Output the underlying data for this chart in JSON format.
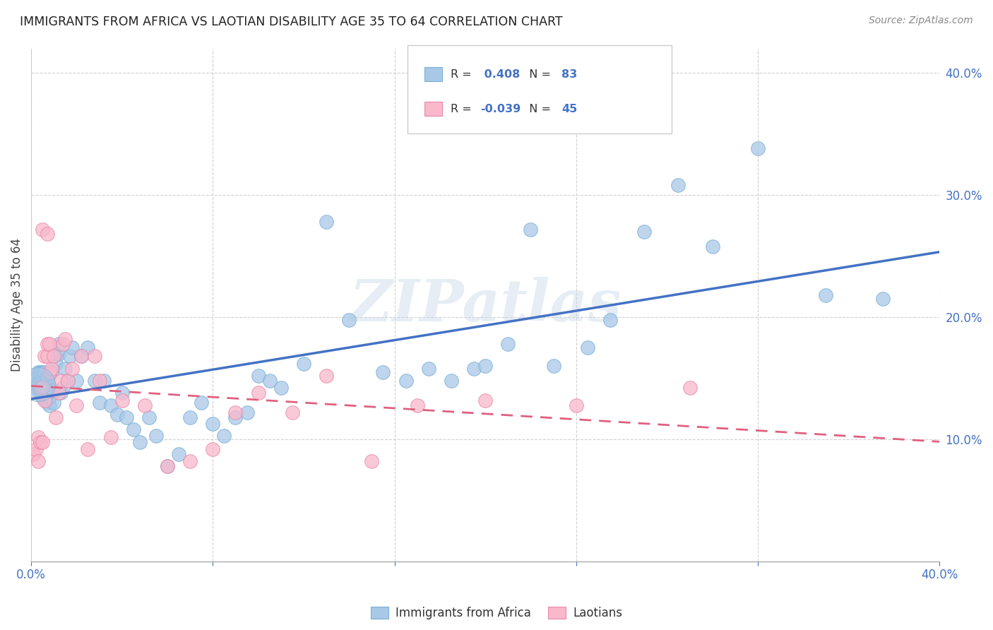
{
  "title": "IMMIGRANTS FROM AFRICA VS LAOTIAN DISABILITY AGE 35 TO 64 CORRELATION CHART",
  "source": "Source: ZipAtlas.com",
  "ylabel": "Disability Age 35 to 64",
  "xlim": [
    0.0,
    0.4
  ],
  "ylim": [
    0.0,
    0.42
  ],
  "x_ticks": [
    0.0,
    0.08,
    0.16,
    0.24,
    0.32,
    0.4
  ],
  "y_ticks_right": [
    0.1,
    0.2,
    0.3,
    0.4
  ],
  "y_tick_labels_right": [
    "10.0%",
    "20.0%",
    "30.0%",
    "40.0%"
  ],
  "africa_color": "#a8c8e8",
  "africa_edge": "#7aafd4",
  "laotian_color": "#f9b8cc",
  "laotian_edge": "#e888a8",
  "trendline_africa_color": "#4472c4",
  "trendline_laotian_color": "#e06080",
  "legend_text_color": "#4472c4",
  "watermark": "ZIPatlas",
  "africa_x": [
    0.001,
    0.002,
    0.002,
    0.003,
    0.003,
    0.003,
    0.004,
    0.004,
    0.004,
    0.005,
    0.005,
    0.005,
    0.005,
    0.006,
    0.006,
    0.006,
    0.006,
    0.007,
    0.007,
    0.007,
    0.008,
    0.008,
    0.008,
    0.009,
    0.009,
    0.01,
    0.01,
    0.011,
    0.011,
    0.012,
    0.012,
    0.013,
    0.014,
    0.015,
    0.016,
    0.017,
    0.018,
    0.02,
    0.022,
    0.025,
    0.028,
    0.03,
    0.032,
    0.035,
    0.038,
    0.04,
    0.042,
    0.045,
    0.048,
    0.052,
    0.055,
    0.06,
    0.065,
    0.07,
    0.075,
    0.08,
    0.085,
    0.09,
    0.095,
    0.1,
    0.105,
    0.11,
    0.12,
    0.13,
    0.14,
    0.155,
    0.165,
    0.175,
    0.185,
    0.195,
    0.2,
    0.21,
    0.22,
    0.23,
    0.245,
    0.255,
    0.27,
    0.285,
    0.3,
    0.32,
    0.35,
    0.375
  ],
  "africa_y": [
    0.145,
    0.145,
    0.15,
    0.14,
    0.145,
    0.155,
    0.14,
    0.148,
    0.155,
    0.135,
    0.143,
    0.148,
    0.155,
    0.133,
    0.14,
    0.148,
    0.155,
    0.13,
    0.14,
    0.15,
    0.128,
    0.135,
    0.143,
    0.14,
    0.155,
    0.13,
    0.14,
    0.162,
    0.17,
    0.17,
    0.178,
    0.138,
    0.142,
    0.158,
    0.148,
    0.168,
    0.175,
    0.148,
    0.168,
    0.175,
    0.148,
    0.13,
    0.148,
    0.128,
    0.12,
    0.138,
    0.118,
    0.108,
    0.098,
    0.118,
    0.103,
    0.078,
    0.088,
    0.118,
    0.13,
    0.113,
    0.103,
    0.118,
    0.122,
    0.152,
    0.148,
    0.142,
    0.162,
    0.278,
    0.198,
    0.155,
    0.148,
    0.158,
    0.148,
    0.158,
    0.16,
    0.178,
    0.272,
    0.16,
    0.175,
    0.198,
    0.27,
    0.308,
    0.258,
    0.338,
    0.218,
    0.215
  ],
  "laotian_x": [
    0.001,
    0.002,
    0.003,
    0.003,
    0.004,
    0.004,
    0.005,
    0.005,
    0.006,
    0.006,
    0.007,
    0.007,
    0.008,
    0.008,
    0.009,
    0.01,
    0.011,
    0.012,
    0.013,
    0.014,
    0.015,
    0.016,
    0.018,
    0.02,
    0.022,
    0.025,
    0.028,
    0.03,
    0.035,
    0.04,
    0.05,
    0.06,
    0.07,
    0.08,
    0.09,
    0.1,
    0.115,
    0.13,
    0.15,
    0.17,
    0.2,
    0.24,
    0.29,
    0.005,
    0.007
  ],
  "laotian_y": [
    0.088,
    0.092,
    0.102,
    0.082,
    0.098,
    0.142,
    0.098,
    0.143,
    0.132,
    0.168,
    0.168,
    0.178,
    0.178,
    0.155,
    0.158,
    0.168,
    0.118,
    0.138,
    0.148,
    0.178,
    0.182,
    0.148,
    0.158,
    0.128,
    0.168,
    0.092,
    0.168,
    0.148,
    0.102,
    0.132,
    0.128,
    0.078,
    0.082,
    0.092,
    0.122,
    0.138,
    0.122,
    0.152,
    0.082,
    0.128,
    0.132,
    0.128,
    0.142,
    0.272,
    0.268
  ]
}
